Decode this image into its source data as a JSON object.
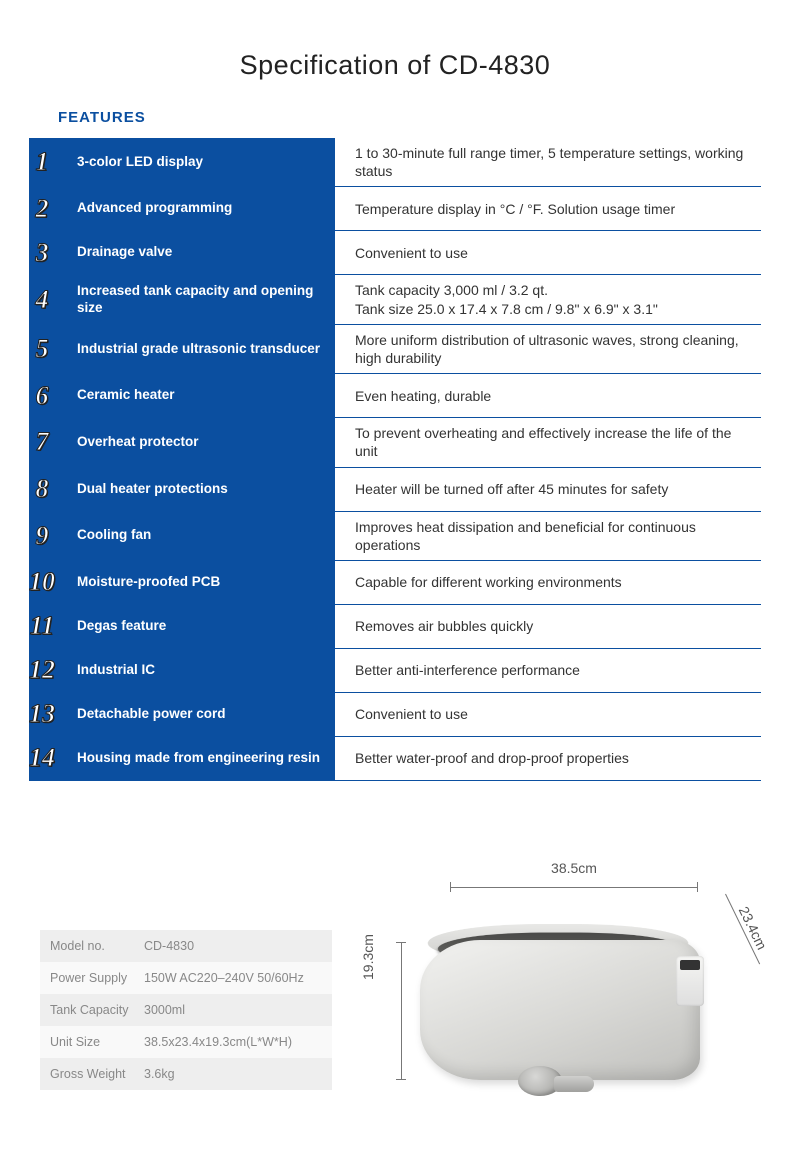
{
  "title": "Specification of CD-4830",
  "features_heading": "FEATURES",
  "colors": {
    "accent": "#0b4fa0",
    "text": "#333333",
    "muted": "#888888",
    "row_alt_bg": "#eeeeee",
    "row_bg": "#f9f9f9"
  },
  "features": [
    {
      "n": "1",
      "name": "3-color LED display",
      "desc": "1 to 30-minute full range timer, 5 temperature settings, working status"
    },
    {
      "n": "2",
      "name": "Advanced programming",
      "desc": "Temperature display in °C / °F. Solution usage timer"
    },
    {
      "n": "3",
      "name": "Drainage valve",
      "desc": "Convenient to use"
    },
    {
      "n": "4",
      "name": "Increased tank capacity and opening size",
      "desc": "Tank capacity 3,000 ml / 3.2 qt.\nTank size 25.0 x 17.4 x 7.8 cm / 9.8\" x 6.9\" x 3.1\""
    },
    {
      "n": "5",
      "name": "Industrial grade ultrasonic transducer",
      "desc": "More uniform distribution of ultrasonic waves, strong cleaning, high durability"
    },
    {
      "n": "6",
      "name": "Ceramic heater",
      "desc": "Even heating, durable"
    },
    {
      "n": "7",
      "name": "Overheat protector",
      "desc": "To prevent overheating and effectively increase the life of the unit"
    },
    {
      "n": "8",
      "name": "Dual heater protections",
      "desc": "Heater will be turned off after 45 minutes for safety"
    },
    {
      "n": "9",
      "name": "Cooling fan",
      "desc": "Improves heat dissipation and beneficial for continuous operations"
    },
    {
      "n": "10",
      "name": "Moisture-proofed PCB",
      "desc": "Capable for different working environments"
    },
    {
      "n": "11",
      "name": "Degas feature",
      "desc": "Removes air bubbles quickly"
    },
    {
      "n": "12",
      "name": "Industrial IC",
      "desc": "Better anti-interference performance"
    },
    {
      "n": "13",
      "name": "Detachable power cord",
      "desc": "Convenient to use"
    },
    {
      "n": "14",
      "name": "Housing made from engineering resin",
      "desc": "Better water-proof and drop-proof properties"
    }
  ],
  "specs": [
    {
      "label": "Model no.",
      "value": "CD-4830"
    },
    {
      "label": "Power Supply",
      "value": "150W   AC220–240V   50/60Hz"
    },
    {
      "label": "Tank Capacity",
      "value": "3000ml"
    },
    {
      "label": "Unit Size",
      "value": "38.5x23.4x19.3cm(L*W*H)"
    },
    {
      "label": "Gross Weight",
      "value": "3.6kg"
    }
  ],
  "dimensions": {
    "length": "38.5cm",
    "width": "23.4cm",
    "height": "19.3cm"
  }
}
